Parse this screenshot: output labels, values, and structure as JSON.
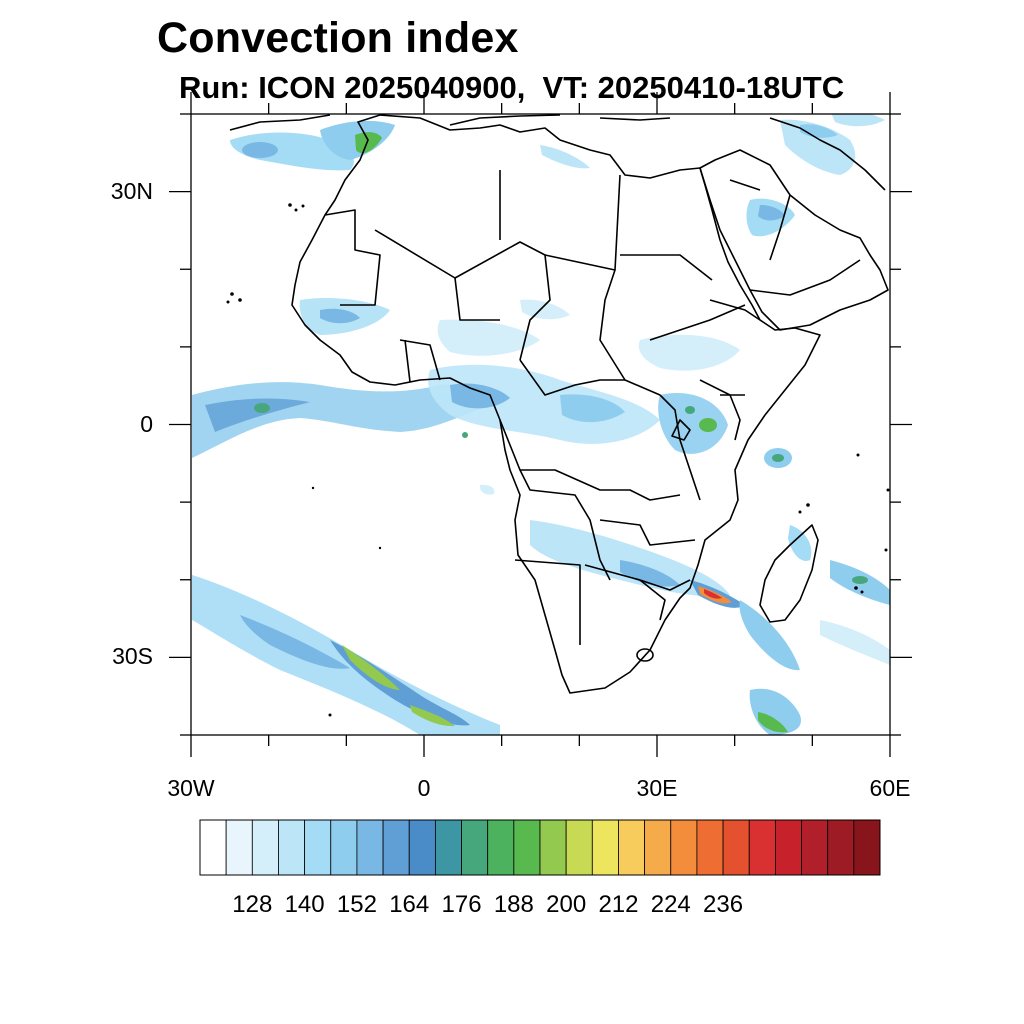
{
  "title": "Convection index",
  "subtitle": "Run: ICON 2025040900,  VT: 20250410-18UTC",
  "map": {
    "extent": {
      "lon_min": -30,
      "lon_max": 60,
      "lat_min": -40,
      "lat_max": 40
    },
    "projection": "cylindrical-equidistant",
    "lat_tick_labels": [
      {
        "lat": 30,
        "text": "30N"
      },
      {
        "lat": 0,
        "text": "0"
      },
      {
        "lat": -30,
        "text": "30S"
      }
    ],
    "lon_tick_labels": [
      {
        "lon": -30,
        "text": "30W"
      },
      {
        "lon": 0,
        "text": "0"
      },
      {
        "lon": 30,
        "text": "30E"
      },
      {
        "lon": 60,
        "text": "60E"
      }
    ]
  },
  "colorbar": {
    "labels": [
      "128",
      "140",
      "152",
      "164",
      "176",
      "188",
      "200",
      "212",
      "224",
      "236"
    ],
    "colors": [
      "#ffffff",
      "#e9f5fc",
      "#d4eefa",
      "#bde5f8",
      "#a5dcf5",
      "#8fcdef",
      "#79b8e4",
      "#5f9fd6",
      "#4a8cc8",
      "#3c96a4",
      "#47a77c",
      "#4cb25d",
      "#58ba4e",
      "#93c94e",
      "#c8d954",
      "#ede55e",
      "#f7cc5c",
      "#f6ab4a",
      "#f38d3c",
      "#ee6d33",
      "#e4512e",
      "#d93131",
      "#c7222b",
      "#b11f2a",
      "#9c1b25",
      "#88151c"
    ]
  }
}
